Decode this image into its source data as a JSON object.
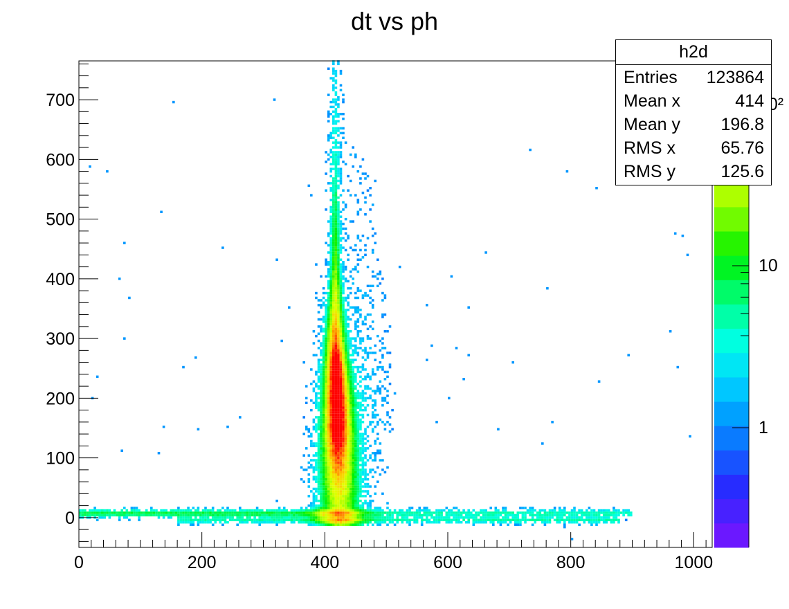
{
  "chart_data": {
    "type": "heatmap",
    "title": "dt vs ph",
    "xlim": [
      0,
      1030
    ],
    "ylim": [
      -50,
      765
    ],
    "x_ticks": [
      0,
      200,
      400,
      600,
      800,
      1000
    ],
    "y_ticks": [
      0,
      100,
      200,
      300,
      400,
      500,
      600,
      700
    ],
    "colorbar": {
      "scale": "log",
      "tick_labels": [
        "1",
        "10",
        "10²"
      ],
      "palette": "rainbow"
    },
    "features": [
      {
        "name": "vertical band",
        "x_center": 417,
        "y_range": [
          0,
          765
        ],
        "peak_y_range": [
          150,
          350
        ]
      },
      {
        "name": "horizontal band upper",
        "y_center": 7,
        "x_range": [
          0,
          900
        ]
      },
      {
        "name": "horizontal band lower",
        "y_center": -5,
        "x_range": [
          160,
          880
        ]
      }
    ]
  },
  "stats": {
    "title": "h2d",
    "rows": [
      {
        "label": "Entries",
        "value": "123864"
      },
      {
        "label": "Mean x",
        "value": "414"
      },
      {
        "label": "Mean y",
        "value": "196.8"
      },
      {
        "label": "RMS x",
        "value": "65.76"
      },
      {
        "label": "RMS y",
        "value": "125.6"
      }
    ]
  }
}
